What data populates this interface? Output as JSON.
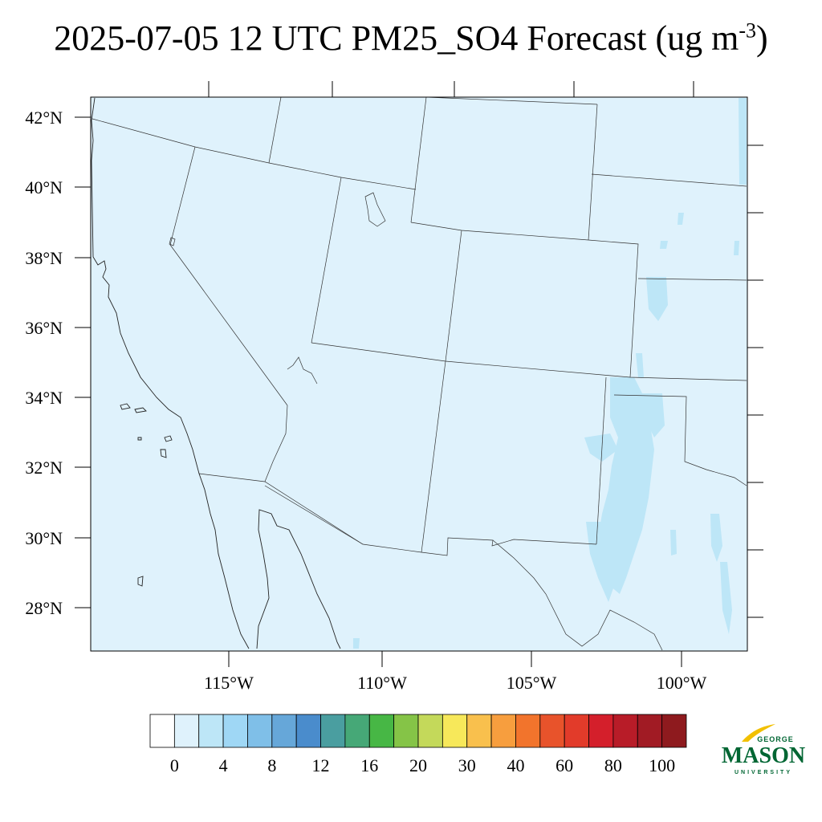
{
  "title": {
    "main": "2025-07-05 12 UTC PM25_SO4 Forecast (ug m",
    "sup": "-3",
    "close": ")"
  },
  "map": {
    "background_color": "#dff2fc",
    "lat_labels": [
      "42°N",
      "40°N",
      "38°N",
      "36°N",
      "34°N",
      "32°N",
      "30°N",
      "28°N"
    ],
    "lon_labels": [
      "115°W",
      "110°W",
      "105°W",
      "100°W"
    ]
  },
  "colorbar": {
    "colors": [
      "#ffffff",
      "#dff2fc",
      "#bde6f7",
      "#9fd7f5",
      "#7fbfe8",
      "#66a7d9",
      "#4a8ccc",
      "#4a9ea0",
      "#46a877",
      "#47b745",
      "#85c447",
      "#c4d95a",
      "#f7e85a",
      "#f9c04d",
      "#f79e3e",
      "#f2742c",
      "#e8532b",
      "#e23b2a",
      "#d41f2b",
      "#b81c28",
      "#a11b24",
      "#8e1a1e"
    ],
    "labels": [
      "0",
      "4",
      "8",
      "12",
      "16",
      "20",
      "30",
      "40",
      "60",
      "80",
      "100"
    ]
  },
  "logo": {
    "top": "GEORGE",
    "middle": "MASON",
    "bottom": "UNIVERSITY",
    "green": "#006633",
    "gold": "#f2c000"
  }
}
